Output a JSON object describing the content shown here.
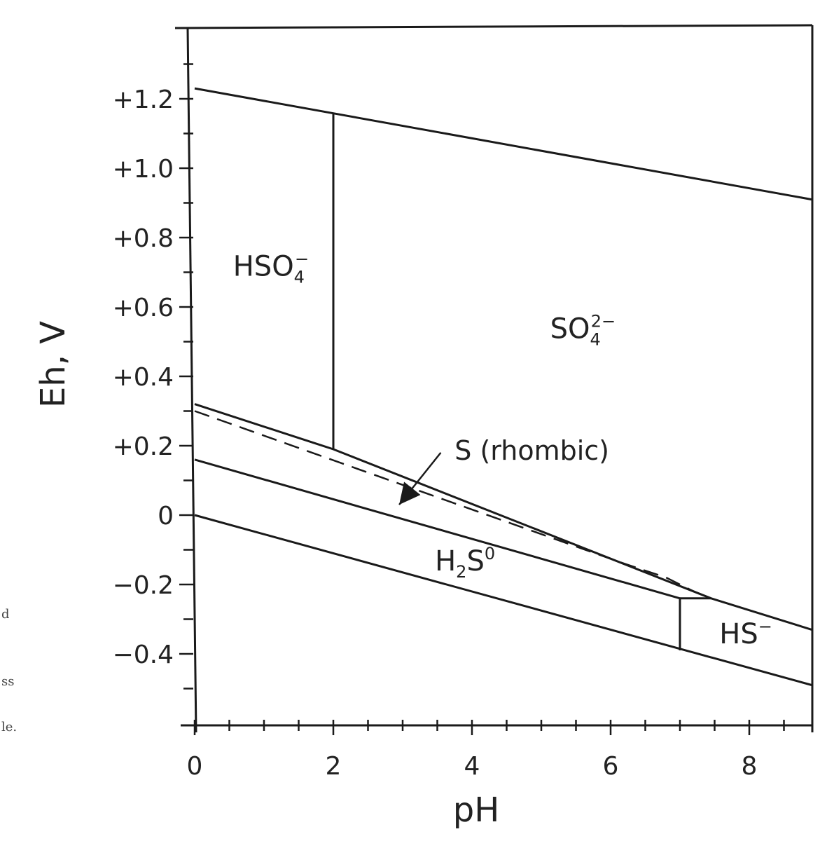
{
  "chart_data": {
    "type": "line",
    "title": "",
    "xlabel": "pH",
    "ylabel": "Eh, V",
    "xlim": [
      0,
      8.9
    ],
    "ylim": [
      -0.6,
      1.4
    ],
    "x_ticks": [
      {
        "value": 0,
        "label": "0"
      },
      {
        "value": 2,
        "label": "2"
      },
      {
        "value": 4,
        "label": "4"
      },
      {
        "value": 6,
        "label": "6"
      },
      {
        "value": 8,
        "label": "8"
      }
    ],
    "y_ticks": [
      {
        "value": 1.2,
        "label": "+1.2"
      },
      {
        "value": 1.0,
        "label": "+1.0"
      },
      {
        "value": 0.8,
        "label": "+0.8"
      },
      {
        "value": 0.6,
        "label": "+0.6"
      },
      {
        "value": 0.4,
        "label": "+0.4"
      },
      {
        "value": 0.2,
        "label": "+0.2"
      },
      {
        "value": 0.0,
        "label": "0"
      },
      {
        "value": -0.2,
        "label": "−0.2"
      },
      {
        "value": -0.4,
        "label": "−0.4"
      }
    ],
    "series": [
      {
        "style": "solid",
        "points": [
          [
            0,
            1.23
          ],
          [
            8.9,
            0.91
          ]
        ]
      },
      {
        "style": "solid",
        "points": [
          [
            2.0,
            1.16
          ],
          [
            2.0,
            0.19
          ]
        ]
      },
      {
        "style": "solid",
        "points": [
          [
            0,
            0.32
          ],
          [
            2.0,
            0.19
          ],
          [
            7.45,
            -0.24
          ],
          [
            8.9,
            -0.33
          ]
        ]
      },
      {
        "style": "dashed",
        "points": [
          [
            0,
            0.3
          ],
          [
            6.2,
            -0.14
          ],
          [
            6.8,
            -0.18
          ],
          [
            7.2,
            -0.22
          ],
          [
            7.45,
            -0.24
          ]
        ]
      },
      {
        "style": "solid",
        "points": [
          [
            0,
            0.16
          ],
          [
            7.0,
            -0.24
          ]
        ]
      },
      {
        "style": "solid",
        "points": [
          [
            7.0,
            -0.24
          ],
          [
            7.45,
            -0.24
          ]
        ]
      },
      {
        "style": "solid",
        "points": [
          [
            7.0,
            -0.24
          ],
          [
            7.0,
            -0.39
          ]
        ]
      },
      {
        "style": "solid",
        "points": [
          [
            0,
            0.0
          ],
          [
            8.9,
            -0.49
          ]
        ]
      }
    ],
    "region_labels": [
      {
        "name": "HSO4-",
        "main": "HSO",
        "sub": "4",
        "sup": "−",
        "x": 1.1,
        "y": 0.69
      },
      {
        "name": "SO4-2-",
        "main": "SO",
        "sub": "4",
        "sup": "2−",
        "x": 5.6,
        "y": 0.51
      },
      {
        "name": "H2S0",
        "main": "H",
        "sub": "2",
        "main2": "S",
        "sup": "0",
        "x": 3.9,
        "y": -0.16
      },
      {
        "name": "HS-",
        "main": "HS",
        "sub": "",
        "sup": "−",
        "x": 7.95,
        "y": -0.37
      }
    ],
    "annotations": [
      {
        "text": "S (rhombic)",
        "x": 3.75,
        "y": 0.16,
        "arrow_from": [
          3.55,
          0.18
        ],
        "arrow_to": [
          2.95,
          0.03
        ]
      }
    ],
    "grid": false,
    "legend": "none"
  },
  "margin_text": [
    "d",
    "ss",
    "le."
  ]
}
